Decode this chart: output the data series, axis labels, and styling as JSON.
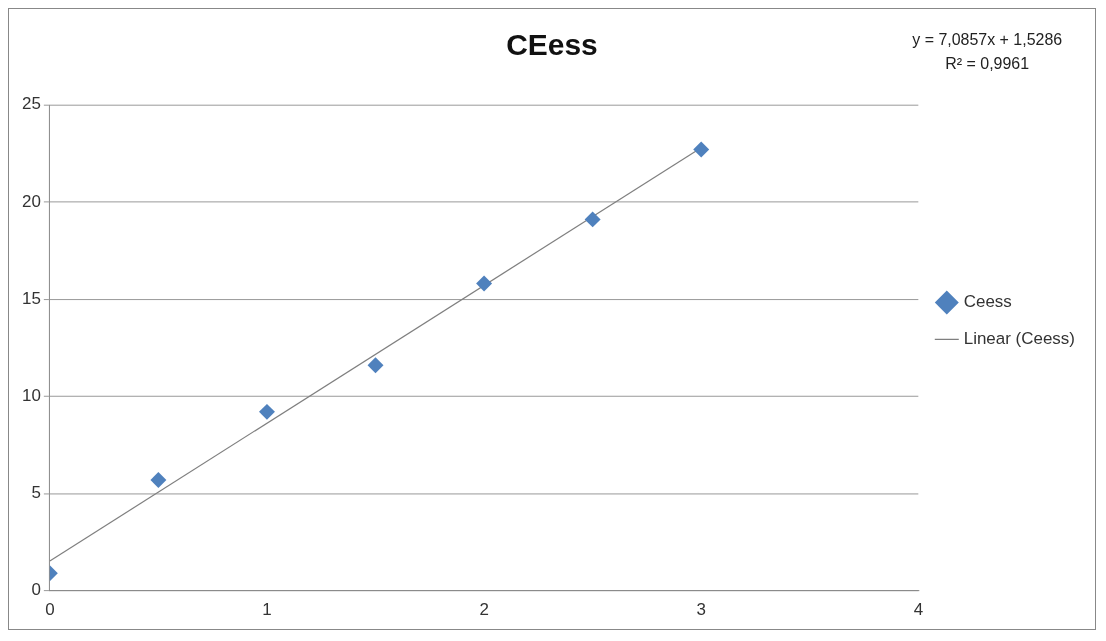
{
  "chart_data": {
    "type": "scatter",
    "title": "CEess",
    "x": [
      0,
      0.5,
      1,
      1.5,
      2,
      2.5,
      3
    ],
    "series": [
      {
        "name": "Ceess",
        "color": "#4f81bd",
        "values": [
          0.9,
          5.7,
          9.2,
          11.6,
          15.8,
          19.1,
          22.7
        ],
        "marker": "diamond"
      },
      {
        "name": "Linear (Ceess)",
        "type": "line",
        "color": "#7f7f7f",
        "x": [
          0,
          3
        ],
        "values": [
          1.53,
          22.79
        ],
        "marker": "none"
      }
    ],
    "xlim": [
      0,
      4
    ],
    "xticks": [
      0,
      1,
      2,
      3,
      4
    ],
    "ylim": [
      0,
      25
    ],
    "yticks": [
      0,
      5,
      10,
      15,
      20,
      25
    ],
    "grid": "y",
    "legend": "right",
    "annotations": [
      "y = 7,0857x + 1,5286",
      "R² = 0,9961"
    ]
  }
}
